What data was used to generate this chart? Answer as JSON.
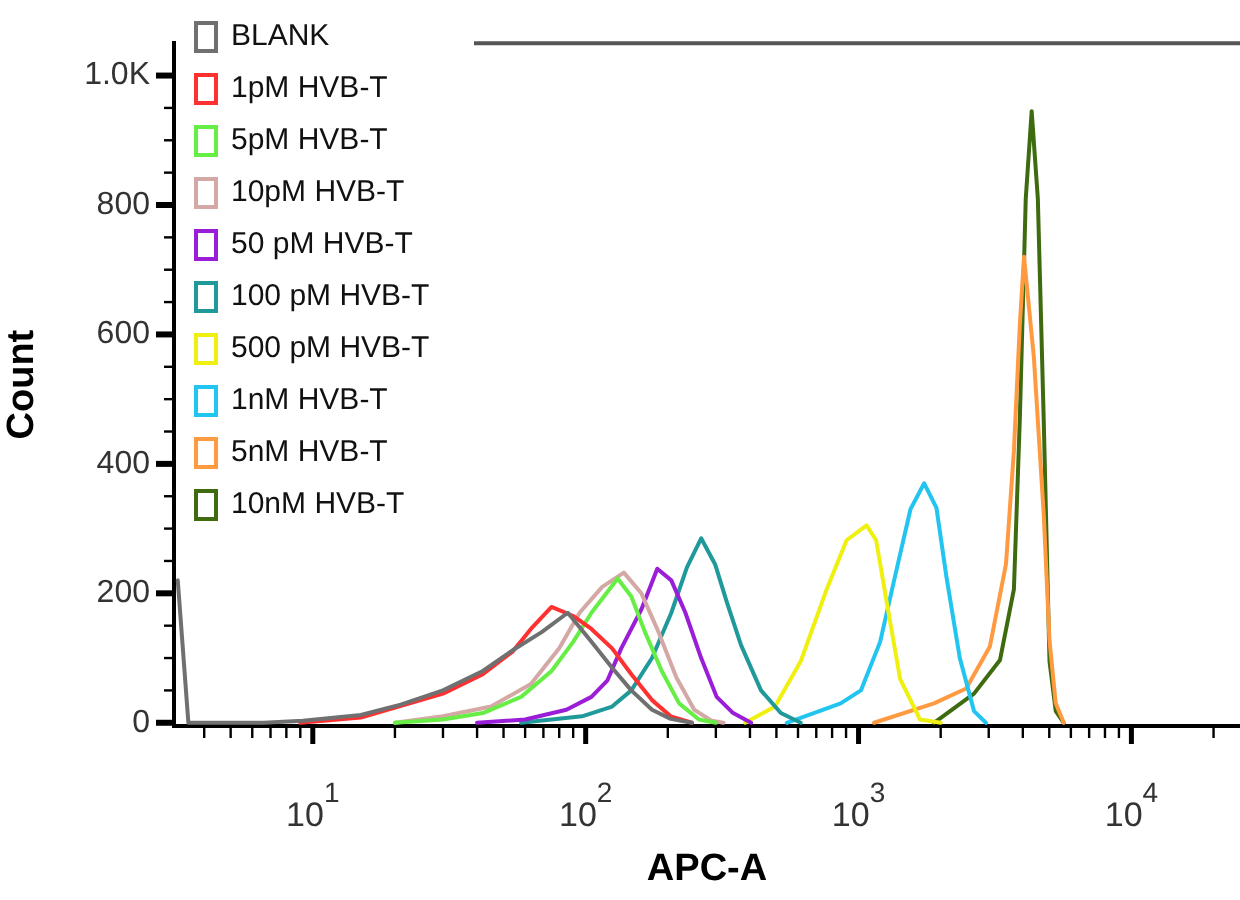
{
  "chart_data": {
    "type": "line",
    "xlabel": "APC-A",
    "ylabel": "Count",
    "log": "x",
    "legend": "top left",
    "marker": "none",
    "xlim": [
      3.1,
      25000
    ],
    "ylim": [
      -5,
      1050
    ],
    "xticks": [
      {
        "value": 4,
        "label": null
      },
      {
        "value": 5,
        "label": null
      },
      {
        "value": 6,
        "label": null
      },
      {
        "value": 7,
        "label": null
      },
      {
        "value": 8,
        "label": null
      },
      {
        "value": 9,
        "label": null
      },
      {
        "value": 10,
        "label": "10$^{1}$"
      },
      {
        "value": 20,
        "label": null
      },
      {
        "value": 30,
        "label": null
      },
      {
        "value": 40,
        "label": null
      },
      {
        "value": 50,
        "label": null
      },
      {
        "value": 60,
        "label": null
      },
      {
        "value": 70,
        "label": null
      },
      {
        "value": 80,
        "label": null
      },
      {
        "value": 90,
        "label": null
      },
      {
        "value": 100,
        "label": "10$^{2}$"
      },
      {
        "value": 200,
        "label": null
      },
      {
        "value": 300,
        "label": null
      },
      {
        "value": 400,
        "label": null
      },
      {
        "value": 500,
        "label": null
      },
      {
        "value": 600,
        "label": null
      },
      {
        "value": 700,
        "label": null
      },
      {
        "value": 800,
        "label": null
      },
      {
        "value": 900,
        "label": null
      },
      {
        "value": 1000,
        "label": "10$^{3}$"
      },
      {
        "value": 2000,
        "label": null
      },
      {
        "value": 3000,
        "label": null
      },
      {
        "value": 4000,
        "label": null
      },
      {
        "value": 5000,
        "label": null
      },
      {
        "value": 6000,
        "label": null
      },
      {
        "value": 7000,
        "label": null
      },
      {
        "value": 8000,
        "label": null
      },
      {
        "value": 9000,
        "label": null
      },
      {
        "value": 10000,
        "label": "10$^{4}$"
      },
      {
        "value": 20000,
        "label": null
      }
    ],
    "yticks": [
      0,
      {
        "value": 50,
        "label": null
      },
      {
        "value": 100,
        "label": null
      },
      {
        "value": 150,
        "label": null
      },
      200,
      {
        "value": 250,
        "label": null
      },
      {
        "value": 300,
        "label": null
      },
      {
        "value": 350,
        "label": null
      },
      400,
      {
        "value": 450,
        "label": null
      },
      {
        "value": 500,
        "label": null
      },
      {
        "value": 550,
        "label": null
      },
      600,
      {
        "value": 650,
        "label": null
      },
      {
        "value": 700,
        "label": null
      },
      {
        "value": 750,
        "label": null
      },
      800,
      {
        "value": 850,
        "label": null
      },
      {
        "value": 900,
        "label": null
      },
      {
        "value": 950,
        "label": null
      },
      {
        "value": 1000,
        "label": "1.0K"
      }
    ],
    "series": [
      {
        "name": "BLANK",
        "color": "#707070",
        "x": [
          3.2,
          3.5,
          6.6,
          9.2,
          15,
          21,
          30,
          42,
          54,
          69,
          86,
          105,
          125,
          147,
          175,
          205,
          245
        ],
        "values": [
          220,
          0,
          0,
          3,
          12,
          28,
          50,
          80,
          112,
          140,
          170,
          125,
          85,
          50,
          20,
          6,
          0
        ]
      },
      {
        "name": "1pM HVB-T",
        "color": "#ff3030",
        "x": [
          9,
          15,
          30,
          42,
          54,
          63,
          75,
          90,
          105,
          125,
          147,
          175,
          205,
          245
        ],
        "values": [
          0,
          8,
          45,
          75,
          110,
          145,
          179,
          165,
          145,
          115,
          75,
          35,
          10,
          0
        ]
      },
      {
        "name": "5pM HVB-T",
        "color": "#66ee44",
        "x": [
          20,
          30,
          42,
          58,
          75,
          90,
          105,
          131,
          147,
          165,
          190,
          220,
          260,
          300
        ],
        "values": [
          0,
          5,
          15,
          40,
          80,
          125,
          170,
          223,
          195,
          140,
          80,
          30,
          5,
          0
        ]
      },
      {
        "name": "10pM HVB-T",
        "color": "#d4a8a4",
        "x": [
          20,
          30,
          45,
          63,
          80,
          95,
          115,
          138,
          160,
          185,
          215,
          250,
          290,
          320
        ],
        "values": [
          0,
          10,
          25,
          60,
          115,
          170,
          210,
          232,
          200,
          140,
          70,
          20,
          3,
          0
        ]
      },
      {
        "name": "50 pM HVB-T",
        "color": "#9a1ed8",
        "x": [
          40,
          60,
          85,
          105,
          120,
          135,
          160,
          183,
          206,
          232,
          265,
          302,
          347,
          404
        ],
        "values": [
          0,
          5,
          20,
          40,
          65,
          115,
          175,
          238,
          220,
          170,
          100,
          40,
          15,
          0
        ]
      },
      {
        "name": "100 pM HVB-T",
        "color": "#20999a",
        "x": [
          58,
          97,
          125,
          147,
          175,
          206,
          235,
          265,
          298,
          330,
          371,
          439,
          519,
          614
        ],
        "values": [
          0,
          10,
          25,
          50,
          100,
          170,
          240,
          285,
          245,
          185,
          120,
          50,
          15,
          0
        ]
      },
      {
        "name": "500 pM HVB-T",
        "color": "#f0f010",
        "x": [
          384,
          494,
          614,
          764,
          904,
          1070,
          1160,
          1270,
          1420,
          1680,
          2000
        ],
        "values": [
          0,
          25,
          95,
          206,
          282,
          305,
          282,
          185,
          68,
          5,
          0
        ]
      },
      {
        "name": "1nM HVB-T",
        "color": "#22c4f0",
        "x": [
          546,
          860,
          1020,
          1200,
          1350,
          1550,
          1740,
          1930,
          2100,
          2350,
          2650,
          2930
        ],
        "values": [
          0,
          30,
          50,
          125,
          220,
          330,
          370,
          332,
          225,
          100,
          18,
          0
        ]
      },
      {
        "name": "5nM HVB-T",
        "color": "#ff9a40",
        "x": [
          1140,
          1890,
          2480,
          3030,
          3470,
          3710,
          3900,
          4040,
          4390,
          4770,
          5010,
          5280,
          5650
        ],
        "values": [
          0,
          30,
          53,
          118,
          245,
          420,
          615,
          720,
          565,
          323,
          127,
          30,
          0
        ]
      },
      {
        "name": "10nM HVB-T",
        "color": "#3e6b10",
        "x": [
          1890,
          2650,
          3300,
          3710,
          3900,
          4100,
          4310,
          4540,
          4770,
          5010,
          5280,
          5650
        ],
        "values": [
          0,
          45,
          97,
          206,
          470,
          810,
          945,
          810,
          470,
          95,
          18,
          0
        ]
      }
    ]
  }
}
